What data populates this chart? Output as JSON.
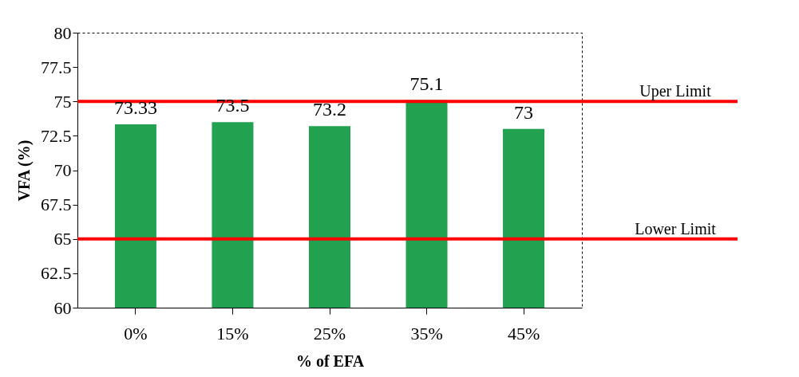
{
  "chart_data": {
    "type": "bar",
    "xlabel": "% of EFA",
    "ylabel": "VFA (%)",
    "categories": [
      "0%",
      "15%",
      "25%",
      "35%",
      "45%"
    ],
    "values": [
      73.33,
      73.5,
      73.2,
      75.1,
      73
    ],
    "color": "#22a150",
    "ylim": [
      60,
      80
    ],
    "yticks": [
      60,
      62.5,
      65,
      67.5,
      70,
      72.5,
      75,
      77.5,
      80
    ],
    "data_labels": true,
    "ref_lines": [
      {
        "axis": "y",
        "value": 75,
        "label": "Uper Limit",
        "color": "#ff0000"
      },
      {
        "axis": "y",
        "value": 65,
        "label": "Lower Limit",
        "color": "#ff0000"
      }
    ]
  }
}
